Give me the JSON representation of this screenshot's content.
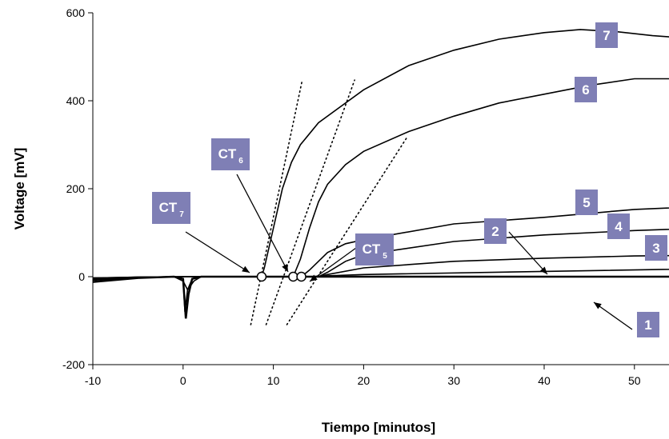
{
  "chart_data": {
    "type": "line",
    "x_label": "Tiempo [minutos]",
    "y_label": "Voltage [mV]",
    "xlim": [
      -10,
      63.8
    ],
    "ylim": [
      -200,
      600
    ],
    "xticks": [
      -10,
      0,
      10,
      20,
      30,
      40,
      50
    ],
    "yticks": [
      -200,
      0,
      200,
      400,
      600
    ],
    "series": [
      {
        "name": "1",
        "color": "#000000",
        "x": [
          -10,
          -5,
          -1,
          0,
          0.3,
          0.6,
          1,
          2,
          10,
          20,
          40,
          63.8
        ],
        "values": [
          -12,
          -3,
          0,
          -5,
          -95,
          -40,
          -5,
          0,
          0,
          0,
          0,
          0
        ]
      },
      {
        "name": "2",
        "color": "#000000",
        "x": [
          -10,
          -5,
          -1,
          0,
          0.2,
          0.5,
          1,
          2,
          14,
          16,
          20,
          40,
          63.8
        ],
        "values": [
          -8,
          -2,
          0,
          -5,
          -80,
          -30,
          -5,
          0,
          0,
          2,
          5,
          12,
          20
        ]
      },
      {
        "name": "3",
        "color": "#000000",
        "x": [
          -10,
          -5,
          -1,
          0,
          0.5,
          1.2,
          2,
          15,
          16,
          20,
          30,
          40,
          50,
          63.8
        ],
        "values": [
          -6,
          -2,
          0,
          -10,
          -30,
          -10,
          0,
          0,
          5,
          20,
          35,
          42,
          47,
          50
        ]
      },
      {
        "name": "4",
        "color": "#000000",
        "x": [
          -10,
          -5,
          0,
          15,
          16,
          18,
          20,
          30,
          40,
          50,
          63.8
        ],
        "values": [
          -5,
          -2,
          0,
          0,
          10,
          35,
          50,
          80,
          95,
          105,
          115
        ]
      },
      {
        "name": "5",
        "color": "#000000",
        "x": [
          -10,
          -5,
          0,
          13.1,
          14,
          15,
          16,
          18,
          20,
          30,
          40,
          50,
          63.8
        ],
        "values": [
          -4,
          -1,
          0,
          0,
          15,
          35,
          55,
          75,
          84,
          120,
          135,
          153,
          165
        ]
      },
      {
        "name": "6",
        "color": "#000000",
        "x": [
          -10,
          -5,
          0,
          12.2,
          13,
          14,
          15,
          16,
          18,
          20,
          25,
          30,
          35,
          40,
          45,
          50,
          55,
          60,
          63.8
        ],
        "values": [
          -3,
          -1,
          0,
          0,
          40,
          110,
          170,
          210,
          255,
          285,
          330,
          365,
          395,
          415,
          435,
          450,
          450,
          447,
          446
        ]
      },
      {
        "name": "7",
        "color": "#000000",
        "x": [
          -10,
          -5,
          0,
          8.7,
          9,
          10,
          11,
          12,
          13,
          15,
          20,
          25,
          30,
          35,
          40,
          44,
          48,
          52,
          56,
          60,
          63.8
        ],
        "values": [
          -3,
          -1,
          0,
          0,
          20,
          110,
          200,
          260,
          300,
          350,
          425,
          480,
          515,
          540,
          555,
          562,
          557,
          548,
          542,
          537,
          533
        ]
      }
    ],
    "annotations": [
      {
        "text": "CT",
        "sub": "7",
        "x": 8.7,
        "y": 0
      },
      {
        "text": "CT",
        "sub": "6",
        "x": 12.2,
        "y": 0
      },
      {
        "text": "CT",
        "sub": "5",
        "x": 13.1,
        "y": 0
      }
    ],
    "tangents": [
      {
        "x": [
          7.5,
          13.2
        ],
        "y": [
          -109,
          447
        ]
      },
      {
        "x": [
          9.2,
          19.0
        ],
        "y": [
          -109,
          447
        ]
      },
      {
        "x": [
          11.5,
          24.9
        ],
        "y": [
          -109,
          320
        ]
      }
    ]
  }
}
